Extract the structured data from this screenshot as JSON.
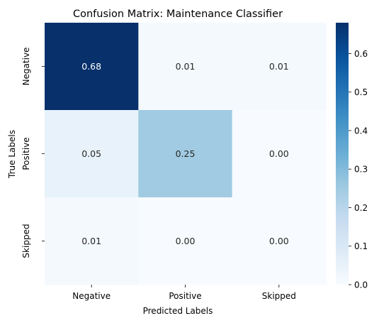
{
  "chart_data": {
    "type": "heatmap",
    "title": "Confusion Matrix: Maintenance Classifier",
    "xlabel": "Predicted Labels",
    "ylabel": "True Labels",
    "x_categories": [
      "Negative",
      "Positive",
      "Skipped"
    ],
    "y_categories": [
      "Negative",
      "Positive",
      "Skipped"
    ],
    "values": [
      [
        0.68,
        0.01,
        0.01
      ],
      [
        0.05,
        0.25,
        0.0
      ],
      [
        0.01,
        0.0,
        0.0
      ]
    ],
    "cell_labels": [
      [
        "0.68",
        "0.01",
        "0.01"
      ],
      [
        "0.05",
        "0.25",
        "0.00"
      ],
      [
        "0.01",
        "0.00",
        "0.00"
      ]
    ],
    "colormap": "Blues",
    "color_low": "#f7fbff",
    "color_high": "#08306b",
    "colorbar_range": [
      0.0,
      0.68
    ],
    "colorbar_ticks": [
      "0.0",
      "0.1",
      "0.2",
      "0.3",
      "0.4",
      "0.5",
      "0.6"
    ],
    "colorbar_tick_values": [
      0.0,
      0.1,
      0.2,
      0.3,
      0.4,
      0.5,
      0.6
    ]
  }
}
